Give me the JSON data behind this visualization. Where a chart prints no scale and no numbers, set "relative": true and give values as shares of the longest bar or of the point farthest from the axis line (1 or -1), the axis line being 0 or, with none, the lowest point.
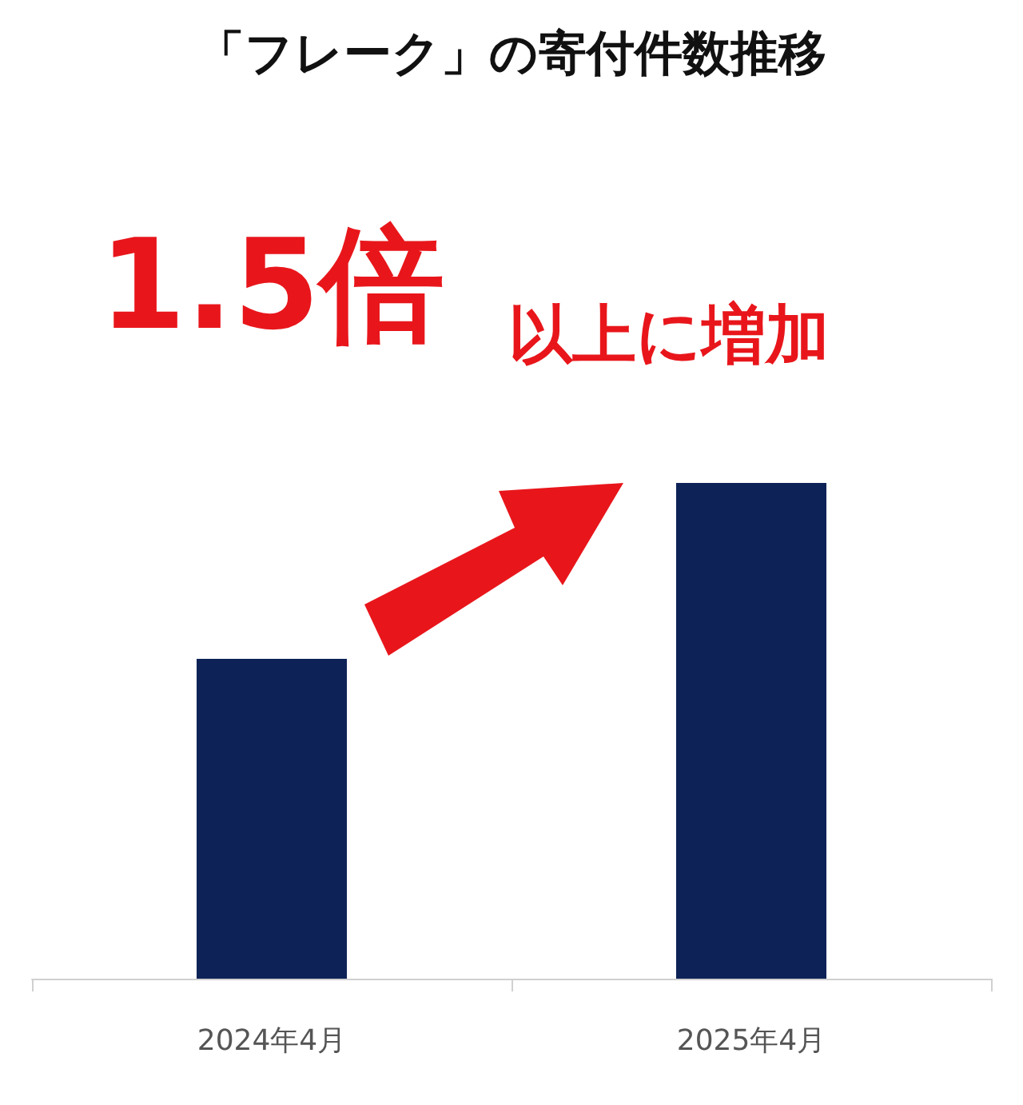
{
  "chart_data": {
    "type": "bar",
    "title": "「フレーク」の寄付件数推移",
    "categories": [
      "2024年4月",
      "2025年4月"
    ],
    "values": [
      0.645,
      1
    ],
    "color": "#0d2357",
    "relative": true,
    "annotations": [
      "1.5倍",
      "以上に増加"
    ]
  }
}
